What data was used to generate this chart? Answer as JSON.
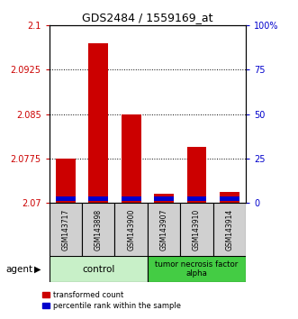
{
  "title": "GDS2484 / 1559169_at",
  "samples": [
    "GSM143717",
    "GSM143898",
    "GSM143900",
    "GSM143907",
    "GSM143910",
    "GSM143914"
  ],
  "red_values": [
    2.0775,
    2.097,
    2.085,
    2.0715,
    2.0795,
    2.0718
  ],
  "blue_heights": [
    0.0008,
    0.0008,
    0.0008,
    0.0008,
    0.0008,
    0.0008
  ],
  "ymin": 2.07,
  "ymax": 2.1,
  "yticks": [
    2.07,
    2.0775,
    2.085,
    2.0925,
    2.1
  ],
  "ytick_labels": [
    "2.07",
    "2.0775",
    "2.085",
    "2.0925",
    "2.1"
  ],
  "right_yticks": [
    0,
    25,
    50,
    75,
    100
  ],
  "right_ytick_labels": [
    "0",
    "25",
    "50",
    "75",
    "100%"
  ],
  "left_color": "#cc0000",
  "right_color": "#0000cc",
  "bar_width": 0.6,
  "group1_label": "control",
  "group2_label": "tumor necrosis factor\nalpha",
  "group1_indices": [
    0,
    1,
    2
  ],
  "group2_indices": [
    3,
    4,
    5
  ],
  "agent_label": "agent",
  "legend_red": "transformed count",
  "legend_blue": "percentile rank within the sample",
  "group1_color": "#c8f0c8",
  "group2_color": "#44cc44",
  "label_box_color": "#d0d0d0"
}
